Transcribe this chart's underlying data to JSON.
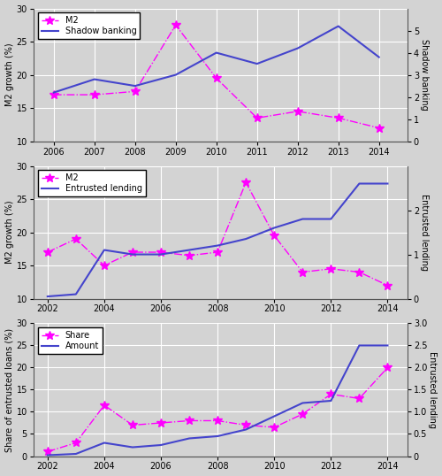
{
  "panel1": {
    "years": [
      2006,
      2007,
      2008,
      2009,
      2010,
      2011,
      2012,
      2013,
      2014
    ],
    "m2": [
      17,
      17,
      17.5,
      27.5,
      19.5,
      13.5,
      14.5,
      13.5,
      12
    ],
    "shadow": [
      2.2,
      2.8,
      2.5,
      3.0,
      4.0,
      3.5,
      4.2,
      5.2,
      3.8
    ],
    "ylabel_left": "M2 growth (%)",
    "ylabel_right": "Shadow banking",
    "ylim_left": [
      10,
      30
    ],
    "ylim_right": [
      0,
      6
    ],
    "yticks_left": [
      10,
      15,
      20,
      25,
      30
    ],
    "yticks_right": [
      0,
      1,
      2,
      3,
      4,
      5
    ],
    "legend1": "M2",
    "legend2": "Shadow banking",
    "xticks": [
      2006,
      2007,
      2008,
      2009,
      2010,
      2011,
      2012,
      2013,
      2014
    ],
    "xlim": [
      2005.5,
      2014.7
    ]
  },
  "panel2": {
    "years_m2": [
      2002,
      2003,
      2004,
      2005,
      2006,
      2007,
      2008,
      2009,
      2010,
      2011,
      2012,
      2013,
      2014
    ],
    "m2": [
      17,
      19,
      15,
      17,
      17,
      16.5,
      17,
      27.5,
      19.5,
      14,
      14.5,
      14,
      12
    ],
    "years_ent": [
      2002,
      2003,
      2004,
      2005,
      2006,
      2007,
      2008,
      2009,
      2010,
      2011,
      2012,
      2013,
      2014
    ],
    "entrusted": [
      0.05,
      0.1,
      1.1,
      1.0,
      1.0,
      1.1,
      1.2,
      1.35,
      1.6,
      1.8,
      1.8,
      2.6,
      2.6
    ],
    "ylabel_left": "M2 growth (%)",
    "ylabel_right": "Entrusted lending",
    "ylim_left": [
      10,
      30
    ],
    "ylim_right": [
      0,
      3
    ],
    "yticks_left": [
      10,
      15,
      20,
      25,
      30
    ],
    "yticks_right": [
      0,
      1,
      2
    ],
    "legend1": "M2",
    "legend2": "Entrusted lending",
    "xticks": [
      2002,
      2004,
      2006,
      2008,
      2010,
      2012,
      2014
    ],
    "xlim": [
      2001.5,
      2014.7
    ]
  },
  "panel3": {
    "years_share": [
      2002,
      2003,
      2004,
      2005,
      2006,
      2007,
      2008,
      2009,
      2010,
      2011,
      2012,
      2013,
      2014
    ],
    "share": [
      1,
      3,
      11.5,
      7,
      7.5,
      8,
      8,
      7,
      6.5,
      9.5,
      14,
      13,
      20
    ],
    "years_amt": [
      2002,
      2003,
      2004,
      2005,
      2006,
      2007,
      2008,
      2009,
      2010,
      2011,
      2012,
      2013,
      2014
    ],
    "amount": [
      0.02,
      0.05,
      0.3,
      0.2,
      0.25,
      0.4,
      0.45,
      0.6,
      0.9,
      1.2,
      1.25,
      2.5,
      2.5
    ],
    "ylabel_left": "Share of entrusted loans (%)",
    "ylabel_right": "Entrusted lending",
    "ylim_left": [
      0,
      30
    ],
    "ylim_right": [
      0,
      3
    ],
    "yticks_left": [
      0,
      5,
      10,
      15,
      20,
      25,
      30
    ],
    "yticks_right": [
      0,
      0.5,
      1.0,
      1.5,
      2.0,
      2.5,
      3.0
    ],
    "legend1": "Share",
    "legend2": "Amount",
    "xticks": [
      2002,
      2004,
      2006,
      2008,
      2010,
      2012,
      2014
    ],
    "xlim": [
      2001.5,
      2014.7
    ]
  },
  "line_color": "#4444cc",
  "marker_color": "#ff00ff",
  "bg_color": "#d3d3d3",
  "grid_color": "#ffffff",
  "fig_width": 5.0,
  "fig_height": 5.38,
  "dpi": 100
}
